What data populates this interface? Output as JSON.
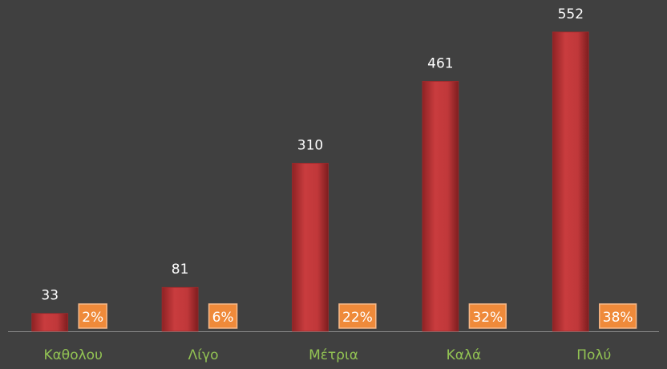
{
  "chart_data": {
    "type": "bar",
    "categories": [
      "Καθολου",
      "Λίγο",
      "Μέτρια",
      "Καλά",
      "Πολύ"
    ],
    "series": [
      {
        "color": "#c0383a",
        "values": [
          33,
          81,
          310,
          461,
          552
        ]
      },
      {
        "color": "#ef8a3a",
        "values": [
          2,
          6,
          22,
          32,
          38
        ],
        "value_labels": [
          "2%",
          "6%",
          "22%",
          "32%",
          "38%"
        ]
      }
    ]
  }
}
